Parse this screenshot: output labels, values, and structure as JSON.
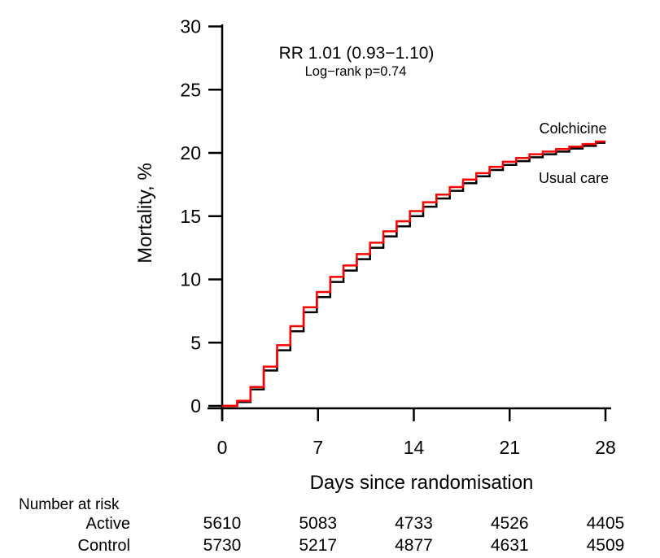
{
  "chart_data": {
    "type": "line",
    "subtype": "kaplan-meier-step",
    "annotation": {
      "line1": "RR 1.01 (0.93−1.10)",
      "line2": "Log−rank p=0.74"
    },
    "xlabel": "Days since randomisation",
    "ylabel": "Mortality, %",
    "xlim": [
      0,
      28
    ],
    "ylim": [
      0,
      30
    ],
    "x_ticks": [
      0,
      7,
      14,
      21,
      28
    ],
    "y_ticks": [
      0,
      5,
      10,
      15,
      20,
      25,
      30
    ],
    "grid": false,
    "legend_position": "labels-at-line-end",
    "x": [
      0,
      1,
      2,
      3,
      4,
      5,
      6,
      7,
      8,
      9,
      10,
      11,
      12,
      13,
      14,
      15,
      16,
      17,
      18,
      19,
      20,
      21,
      22,
      23,
      24,
      25,
      26,
      27,
      28
    ],
    "series": [
      {
        "name": "Colchicine",
        "color": "#ff0000",
        "values": [
          0,
          0.4,
          1.5,
          3.1,
          4.8,
          6.3,
          7.8,
          9.0,
          10.2,
          11.1,
          12.0,
          12.9,
          13.8,
          14.6,
          15.4,
          16.1,
          16.7,
          17.3,
          17.9,
          18.4,
          18.9,
          19.3,
          19.6,
          19.9,
          20.1,
          20.3,
          20.5,
          20.7,
          20.9
        ]
      },
      {
        "name": "Usual care",
        "color": "#000000",
        "values": [
          0,
          0.3,
          1.3,
          2.8,
          4.4,
          5.9,
          7.4,
          8.6,
          9.8,
          10.7,
          11.6,
          12.5,
          13.4,
          14.2,
          15.0,
          15.75,
          16.4,
          17.0,
          17.6,
          18.15,
          18.65,
          19.05,
          19.35,
          19.65,
          19.9,
          20.1,
          20.35,
          20.55,
          20.8
        ]
      }
    ]
  },
  "number_at_risk": {
    "title": "Number at risk",
    "columns": [
      0,
      7,
      14,
      21,
      28
    ],
    "rows": [
      {
        "label": "Active",
        "color": "#ff0000",
        "values": [
          "5610",
          "5083",
          "4733",
          "4526",
          "4405"
        ]
      },
      {
        "label": "Control",
        "color": "#000000",
        "values": [
          "5730",
          "5217",
          "4877",
          "4631",
          "4509"
        ]
      }
    ]
  }
}
